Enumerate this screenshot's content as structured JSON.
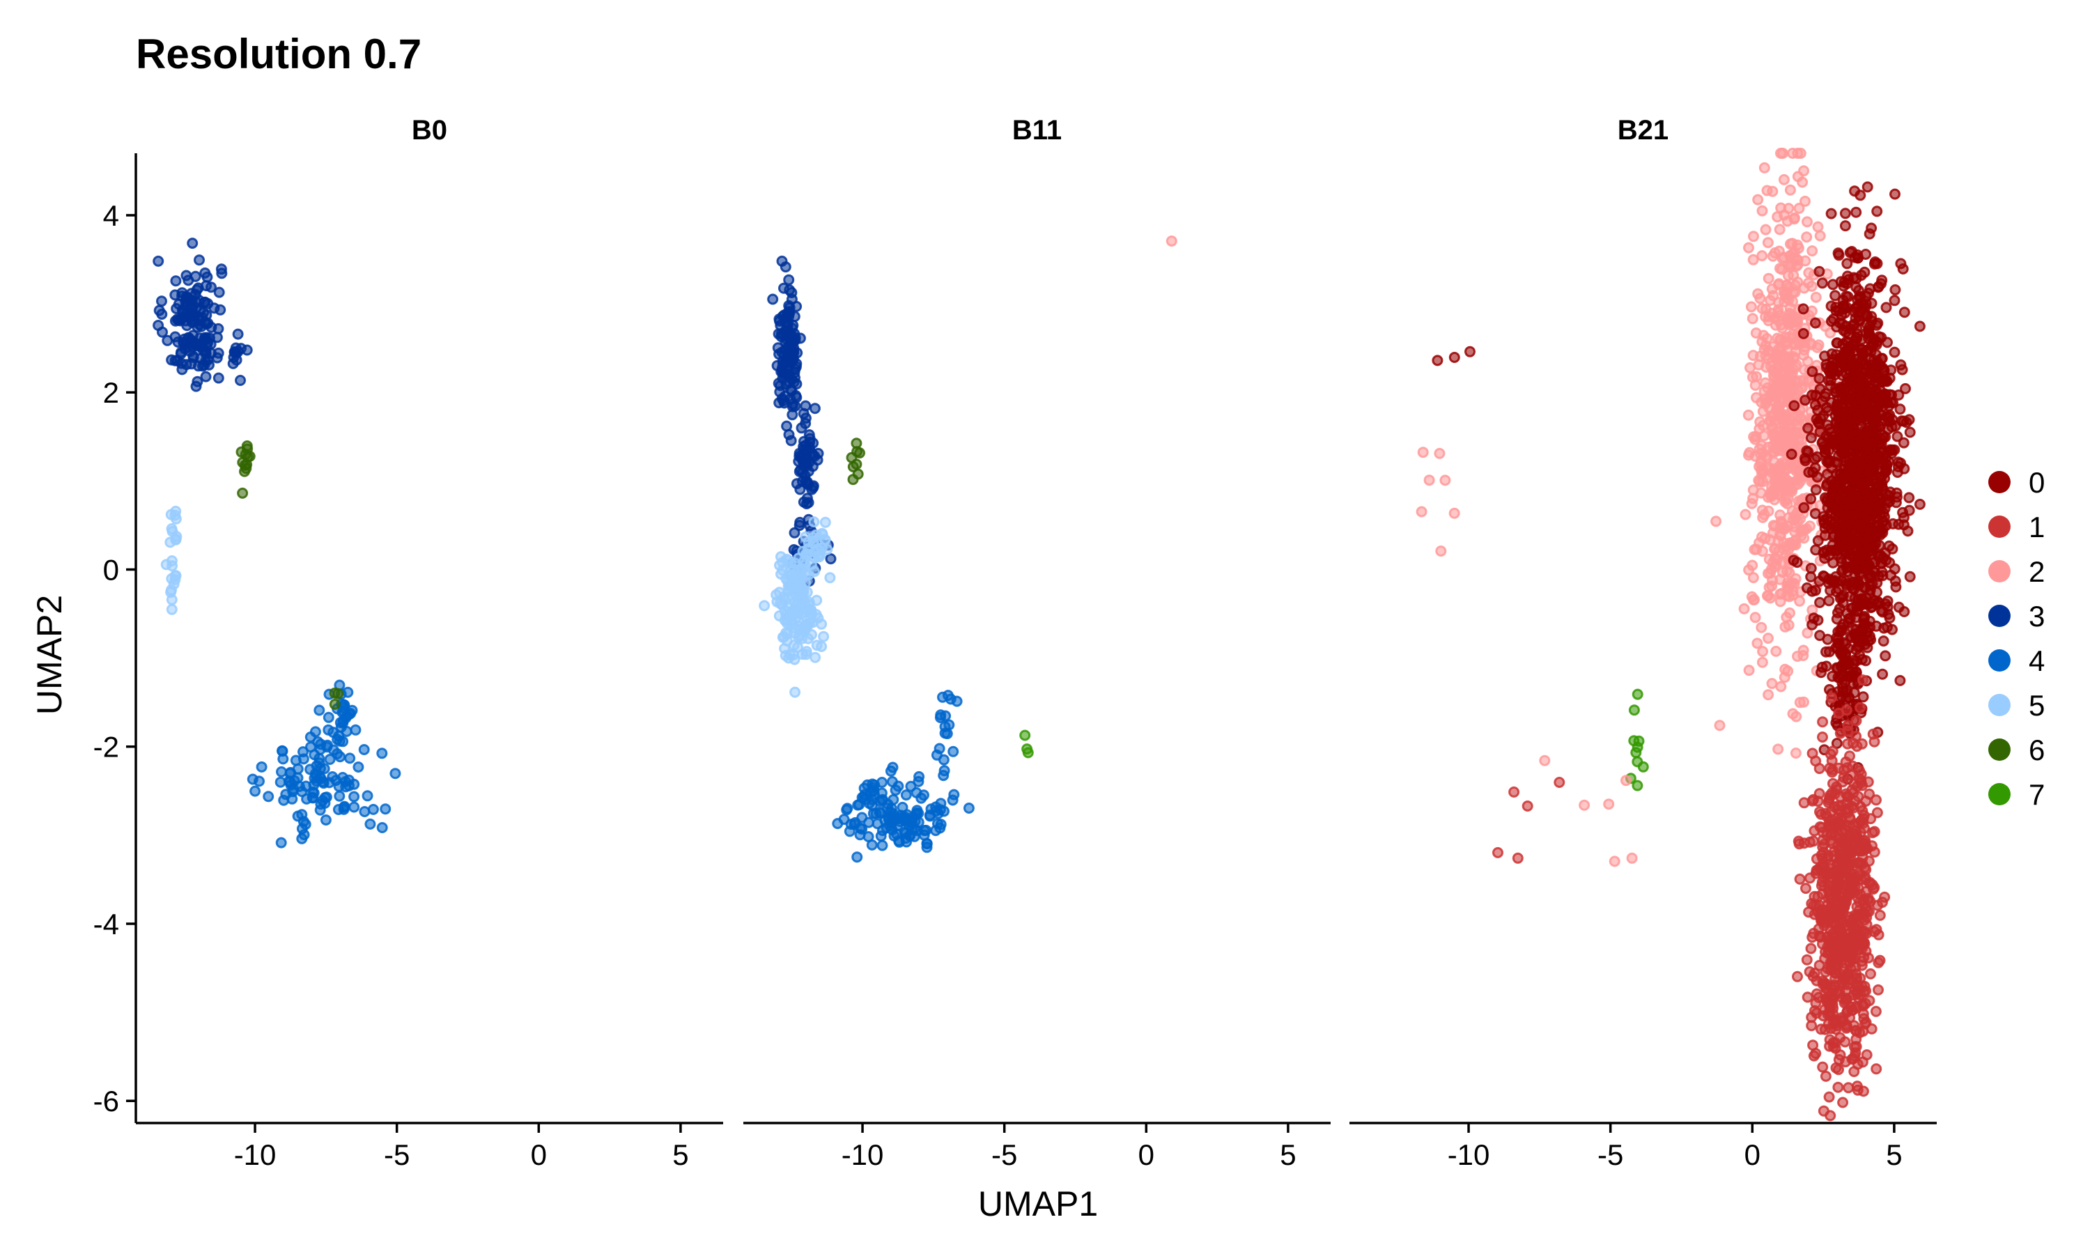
{
  "chart_data": {
    "type": "scatter",
    "title": "Resolution 0.7",
    "xlabel": "UMAP1",
    "ylabel": "UMAP2",
    "xlim": [
      -14.2,
      6.5
    ],
    "ylim": [
      -6.25,
      4.7
    ],
    "x_ticks": [
      -10,
      -5,
      0,
      5
    ],
    "x_tick_labels": [
      "-10",
      "-5",
      "0",
      "5"
    ],
    "y_ticks": [
      -6,
      -4,
      -2,
      0,
      2,
      4
    ],
    "y_tick_labels": [
      "-6",
      "-4",
      "-2",
      "0",
      "2",
      "4"
    ],
    "legend_position": "right",
    "clusters": [
      {
        "name": "0",
        "color": "#990000"
      },
      {
        "name": "1",
        "color": "#CC3333"
      },
      {
        "name": "2",
        "color": "#FF9999"
      },
      {
        "name": "3",
        "color": "#003399"
      },
      {
        "name": "4",
        "color": "#0066CC"
      },
      {
        "name": "5",
        "color": "#99CCFF"
      },
      {
        "name": "6",
        "color": "#336600"
      },
      {
        "name": "7",
        "color": "#339900"
      }
    ],
    "panels": [
      {
        "label": "B0",
        "groups": [
          {
            "cluster": "3",
            "cx": -12.2,
            "cy": 2.8,
            "sx": 0.5,
            "sy": 0.35,
            "n": 140
          },
          {
            "cluster": "3",
            "cx": -10.6,
            "cy": 2.4,
            "sx": 0.1,
            "sy": 0.1,
            "n": 12
          },
          {
            "cluster": "6",
            "cx": -10.3,
            "cy": 1.25,
            "sx": 0.12,
            "sy": 0.15,
            "n": 12
          },
          {
            "cluster": "5",
            "cx": -12.9,
            "cy": 0.2,
            "sx": 0.08,
            "sy": 0.35,
            "n": 22
          },
          {
            "cluster": "4",
            "cx": -7.6,
            "cy": -2.4,
            "sx": 1.0,
            "sy": 0.3,
            "n": 110
          },
          {
            "cluster": "4",
            "cx": -6.9,
            "cy": -1.6,
            "sx": 0.2,
            "sy": 0.25,
            "n": 25
          },
          {
            "cluster": "6",
            "cx": -7.2,
            "cy": -1.4,
            "sx": 0.1,
            "sy": 0.12,
            "n": 3
          }
        ]
      },
      {
        "label": "B11",
        "groups": [
          {
            "cluster": "3",
            "cx": -12.6,
            "cy": 2.5,
            "sx": 0.22,
            "sy": 0.35,
            "n": 110
          },
          {
            "cluster": "3",
            "cx": -12.0,
            "cy": 1.3,
            "sx": 0.25,
            "sy": 0.3,
            "n": 60
          },
          {
            "cluster": "3",
            "cx": -12.0,
            "cy": 0.3,
            "sx": 0.3,
            "sy": 0.2,
            "n": 25
          },
          {
            "cluster": "5",
            "cx": -12.3,
            "cy": -0.4,
            "sx": 0.4,
            "sy": 0.3,
            "n": 150
          },
          {
            "cluster": "5",
            "cx": -11.6,
            "cy": 0.3,
            "sx": 0.25,
            "sy": 0.15,
            "n": 25
          },
          {
            "cluster": "6",
            "cx": -10.2,
            "cy": 1.2,
            "sx": 0.1,
            "sy": 0.1,
            "n": 8
          },
          {
            "cluster": "4",
            "cx": -8.8,
            "cy": -2.75,
            "sx": 0.9,
            "sy": 0.2,
            "n": 130
          },
          {
            "cluster": "4",
            "cx": -7.0,
            "cy": -1.8,
            "sx": 0.25,
            "sy": 0.3,
            "n": 18
          },
          {
            "cluster": "7",
            "cx": -4.2,
            "cy": -2.0,
            "sx": 0.05,
            "sy": 0.1,
            "n": 3
          },
          {
            "cluster": "2",
            "cx": 0.9,
            "cy": 3.7,
            "sx": 0.01,
            "sy": 0.01,
            "n": 1
          }
        ]
      },
      {
        "label": "B21",
        "groups": [
          {
            "cluster": "2",
            "cx": 1.2,
            "cy": 1.6,
            "sx": 0.6,
            "sy": 1.2,
            "n": 700
          },
          {
            "cluster": "0",
            "cx": 3.7,
            "cy": 1.2,
            "sx": 0.7,
            "sy": 1.1,
            "n": 1300
          },
          {
            "cluster": "0",
            "cx": 3.3,
            "cy": -1.3,
            "sx": 0.3,
            "sy": 0.4,
            "n": 80
          },
          {
            "cluster": "1",
            "cx": 3.2,
            "cy": -3.8,
            "sx": 0.55,
            "sy": 0.85,
            "n": 750
          },
          {
            "cluster": "2",
            "cx": -11.2,
            "cy": 1.0,
            "sx": 0.4,
            "sy": 0.5,
            "n": 7
          },
          {
            "cluster": "0",
            "cx": -10.6,
            "cy": 2.4,
            "sx": 0.5,
            "sy": 0.1,
            "n": 3
          },
          {
            "cluster": "7",
            "cx": -4.1,
            "cy": -2.0,
            "sx": 0.1,
            "sy": 0.25,
            "n": 10
          },
          {
            "cluster": "1",
            "cx": -7.0,
            "cy": -2.5,
            "sx": 1.5,
            "sy": 0.4,
            "n": 5
          },
          {
            "cluster": "2",
            "cx": -5.5,
            "cy": -2.5,
            "sx": 1.5,
            "sy": 0.5,
            "n": 6
          }
        ]
      }
    ]
  }
}
